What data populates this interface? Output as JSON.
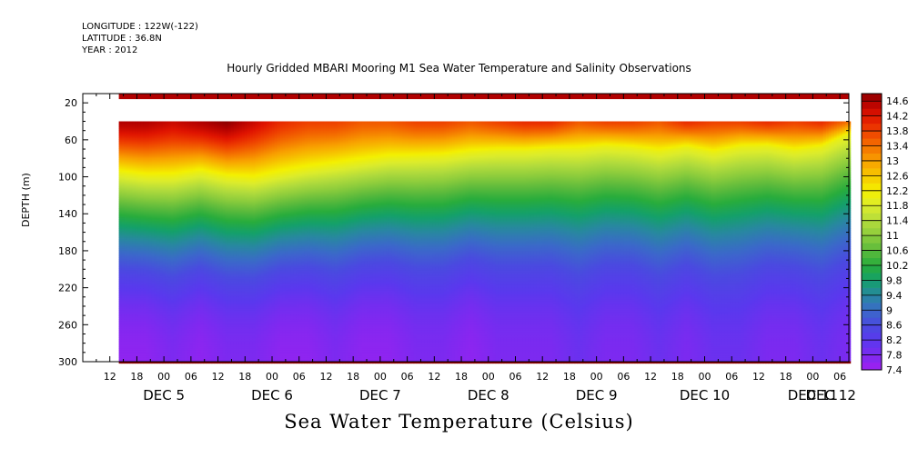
{
  "header": {
    "longitude": "LONGITUDE : 122W(-122)",
    "latitude": "LATITUDE : 36.8N",
    "year": "YEAR : 2012",
    "plot_title": "Hourly Gridded MBARI Mooring M1 Sea Water Temperature and Salinity Observations"
  },
  "chart_data": {
    "type": "heatmap",
    "title": "Sea Water Temperature (Celsius)",
    "ylabel": "DEPTH (m)",
    "xlabel": "",
    "y_ticks": [
      20,
      60,
      100,
      140,
      180,
      220,
      260,
      300
    ],
    "y_range": [
      10,
      300
    ],
    "y_inverted": true,
    "x_hour_ticks": [
      "12",
      "18",
      "00",
      "06",
      "12",
      "18",
      "00",
      "06",
      "12",
      "18",
      "00",
      "06",
      "12",
      "18",
      "00",
      "06",
      "12",
      "18",
      "00",
      "06",
      "12",
      "18",
      "00",
      "06",
      "12",
      "18",
      "00",
      "06"
    ],
    "x_day_labels": [
      "DEC  5",
      "DEC  6",
      "DEC  7",
      "DEC  8",
      "DEC  9",
      "DEC 10",
      "DEC 11",
      "DEC 12"
    ],
    "x_range_hours": [
      6,
      176
    ],
    "data_start_hour": 14,
    "colorbar": {
      "labels": [
        "14.6",
        "14.2",
        "13.8",
        "13.4",
        "13",
        "12.6",
        "12.2",
        "11.8",
        "11.4",
        "11",
        "10.6",
        "10.2",
        "9.8",
        "9.4",
        "9",
        "8.6",
        "8.2",
        "7.8",
        "7.4"
      ],
      "min": 7.4,
      "max": 14.8,
      "step": 0.2,
      "colors": [
        [
          7.4,
          "#a020f0"
        ],
        [
          7.8,
          "#7c2af0"
        ],
        [
          8.2,
          "#5a38ee"
        ],
        [
          8.6,
          "#4a4ae0"
        ],
        [
          9.0,
          "#3a6ac8"
        ],
        [
          9.4,
          "#2888a0"
        ],
        [
          9.8,
          "#14a06a"
        ],
        [
          10.2,
          "#28ac3c"
        ],
        [
          10.6,
          "#5cba3c"
        ],
        [
          11.0,
          "#8ccc3c"
        ],
        [
          11.4,
          "#b4dc3c"
        ],
        [
          11.8,
          "#dcec2c"
        ],
        [
          12.2,
          "#f4f000"
        ],
        [
          12.6,
          "#f6c800"
        ],
        [
          13.0,
          "#f8a000"
        ],
        [
          13.4,
          "#f47000"
        ],
        [
          13.8,
          "#ee4000"
        ],
        [
          14.2,
          "#e01400"
        ],
        [
          14.6,
          "#b00000"
        ],
        [
          14.8,
          "#8c0000"
        ]
      ]
    },
    "surface_band": {
      "depth_range": [
        10,
        16
      ],
      "value": 14.6
    },
    "profile_depth_range": [
      40,
      300
    ],
    "time_hours": [
      14,
      20,
      26,
      32,
      38,
      44,
      50,
      56,
      62,
      68,
      74,
      80,
      86,
      92,
      98,
      104,
      110,
      116,
      122,
      128,
      134,
      140,
      146,
      152,
      158,
      164,
      170,
      176
    ],
    "thermocline_depth_12c": [
      96,
      100,
      100,
      95,
      101,
      103,
      97,
      92,
      88,
      84,
      80,
      79,
      78,
      74,
      72,
      72,
      70,
      70,
      67,
      69,
      73,
      68,
      74,
      68,
      67,
      72,
      68,
      54
    ],
    "surface_temperature": [
      14.6,
      14.6,
      14.4,
      14.6,
      14.8,
      14.4,
      14.0,
      13.8,
      13.8,
      13.6,
      13.6,
      13.8,
      13.8,
      13.6,
      13.8,
      14.0,
      14.0,
      13.6,
      13.8,
      13.8,
      13.6,
      14.0,
      13.8,
      13.8,
      14.0,
      13.8,
      14.0,
      13.4
    ],
    "bottom_temperature": [
      7.6,
      7.6,
      7.8,
      7.6,
      7.8,
      7.8,
      7.6,
      7.6,
      7.8,
      7.6,
      7.6,
      7.8,
      7.8,
      7.6,
      7.8,
      7.8,
      7.8,
      8.0,
      7.8,
      7.8,
      8.0,
      7.8,
      8.0,
      8.0,
      7.8,
      7.8,
      8.0,
      7.8
    ]
  }
}
